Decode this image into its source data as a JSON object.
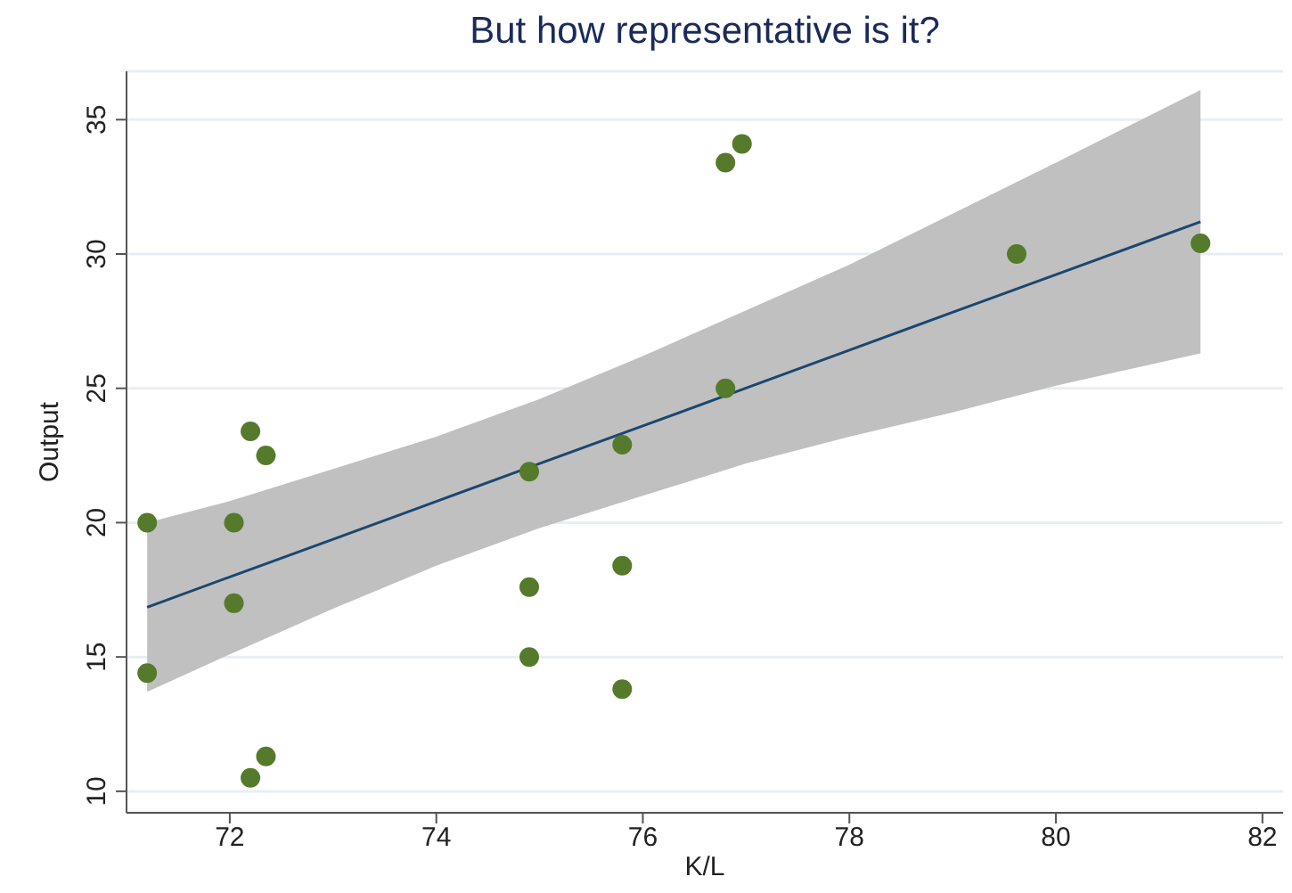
{
  "chart_data": {
    "type": "scatter",
    "title": "But how representative is it?",
    "xlabel": "K/L",
    "ylabel": "Output",
    "xlim": [
      71,
      82.2
    ],
    "xticks": [
      72,
      74,
      76,
      78,
      80,
      82
    ],
    "ylim": [
      9.2,
      36.8
    ],
    "yticks": [
      10,
      15,
      20,
      25,
      30,
      35
    ],
    "grid": "y",
    "marker": "circle",
    "series": [
      {
        "color": "#557a2b",
        "x": [
          71.2,
          71.2,
          72.04,
          72.04,
          72.2,
          72.35,
          72.35,
          72.2,
          74.9,
          74.9,
          74.9,
          75.8,
          75.8,
          75.8,
          76.8,
          76.8,
          76.96,
          79.62,
          81.4
        ],
        "values": [
          20.0,
          14.4,
          20.0,
          17.0,
          23.4,
          22.5,
          11.3,
          10.5,
          21.9,
          17.6,
          15.0,
          22.9,
          18.4,
          13.8,
          25.0,
          33.4,
          34.1,
          30.0,
          30.4
        ]
      },
      {
        "type": "line",
        "color": "#1a476f",
        "marker": "none",
        "x": [
          71.2,
          72,
          73,
          74,
          75,
          76,
          77,
          78,
          79,
          80,
          81.4
        ],
        "values": [
          16.85,
          17.98,
          19.38,
          20.79,
          22.2,
          23.6,
          25.01,
          26.42,
          27.83,
          29.23,
          31.2
        ],
        "lower": [
          13.7,
          15.1,
          16.8,
          18.4,
          19.8,
          21.0,
          22.2,
          23.2,
          24.1,
          25.1,
          26.3
        ],
        "upper": [
          20.0,
          20.8,
          22.0,
          23.2,
          24.6,
          26.2,
          27.9,
          29.6,
          31.5,
          33.4,
          36.1
        ]
      }
    ]
  }
}
